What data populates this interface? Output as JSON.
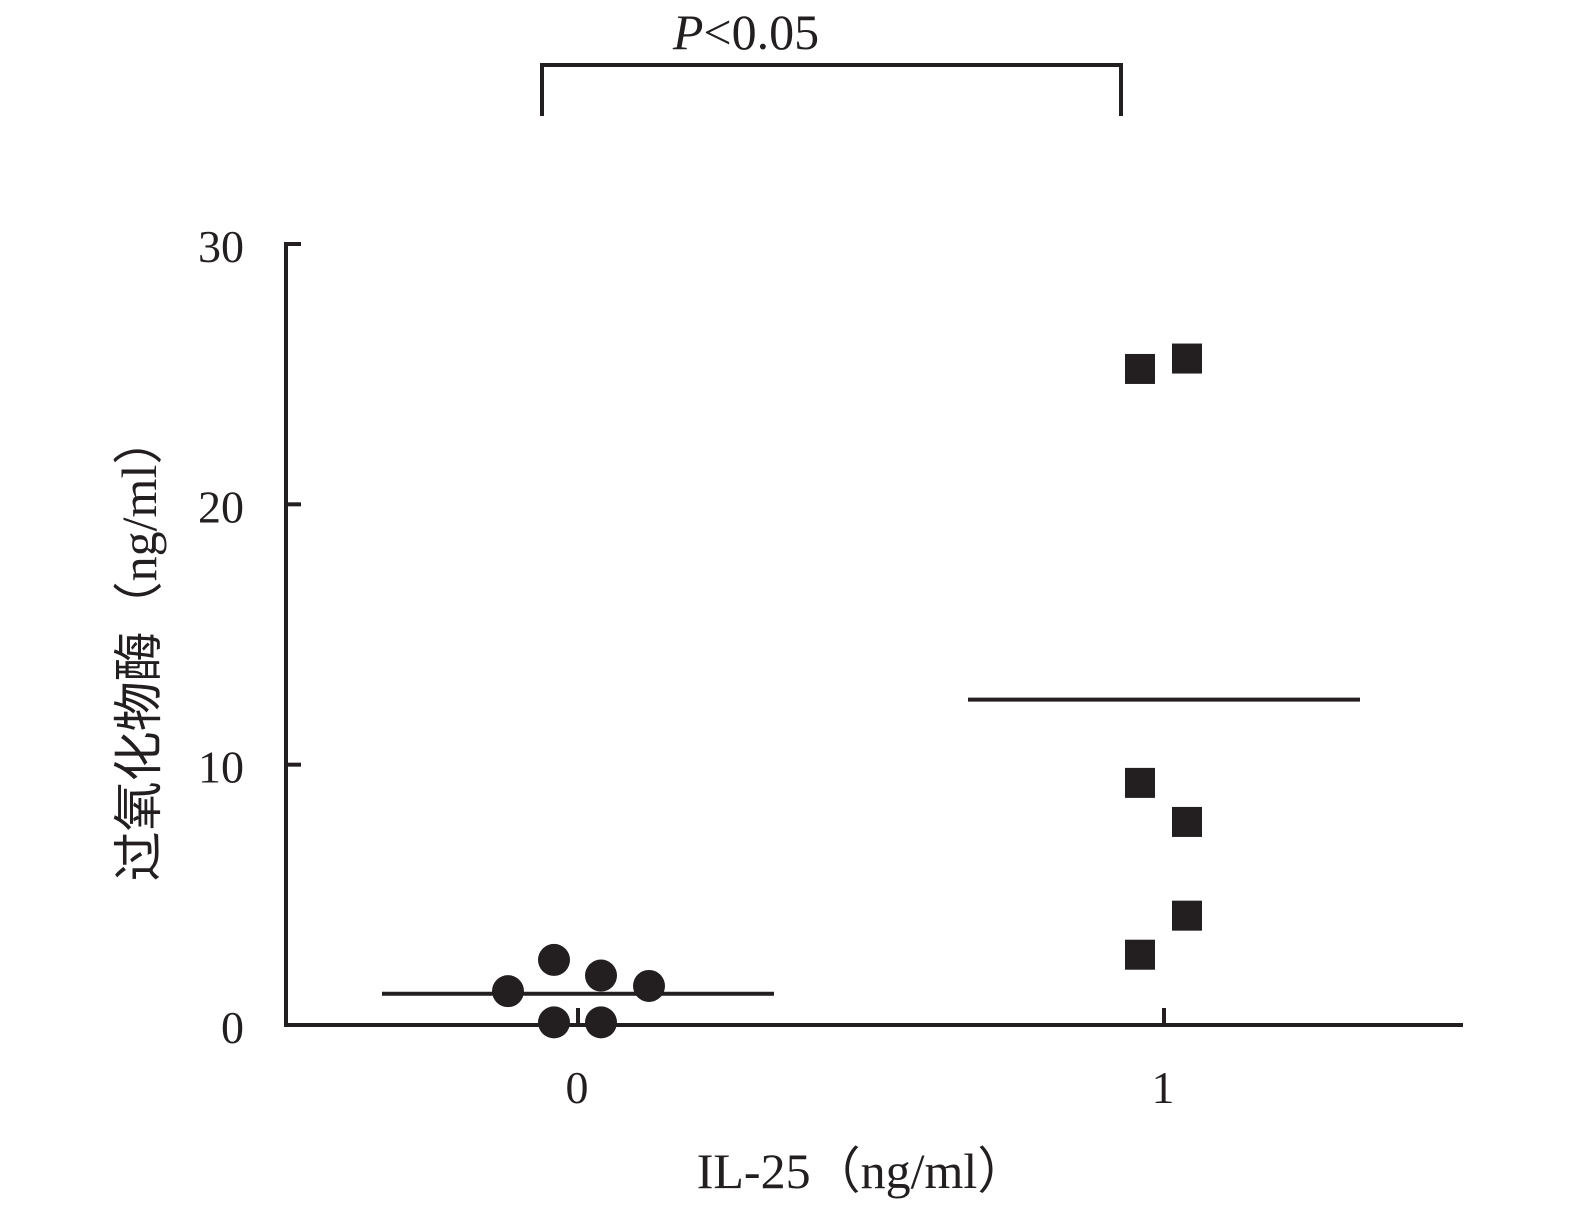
{
  "chart_data": {
    "type": "scatter",
    "xlabel": "IL-25（ng/ml）",
    "ylabel": "过氧化物酶（ng/ml）",
    "categories": [
      "0",
      "1"
    ],
    "ylim": [
      0,
      30
    ],
    "yticks": [
      "0",
      "10",
      "20",
      "30"
    ],
    "series": [
      {
        "category": "0",
        "marker": "circle",
        "values": [
          2.5,
          1.9,
          1.3,
          1.5,
          0.1,
          0.1
        ],
        "mean_line": 1.2
      },
      {
        "category": "1",
        "marker": "square",
        "values": [
          25.2,
          25.6,
          9.3,
          7.8,
          4.2,
          2.7
        ],
        "mean_line": 12.5
      }
    ],
    "annotation": {
      "italic": "P",
      "text": "<0.05",
      "between": [
        "0",
        "1"
      ]
    },
    "grid": false,
    "legend": "none",
    "colors": {
      "ink": "#231f20",
      "background": "#ffffff"
    }
  }
}
